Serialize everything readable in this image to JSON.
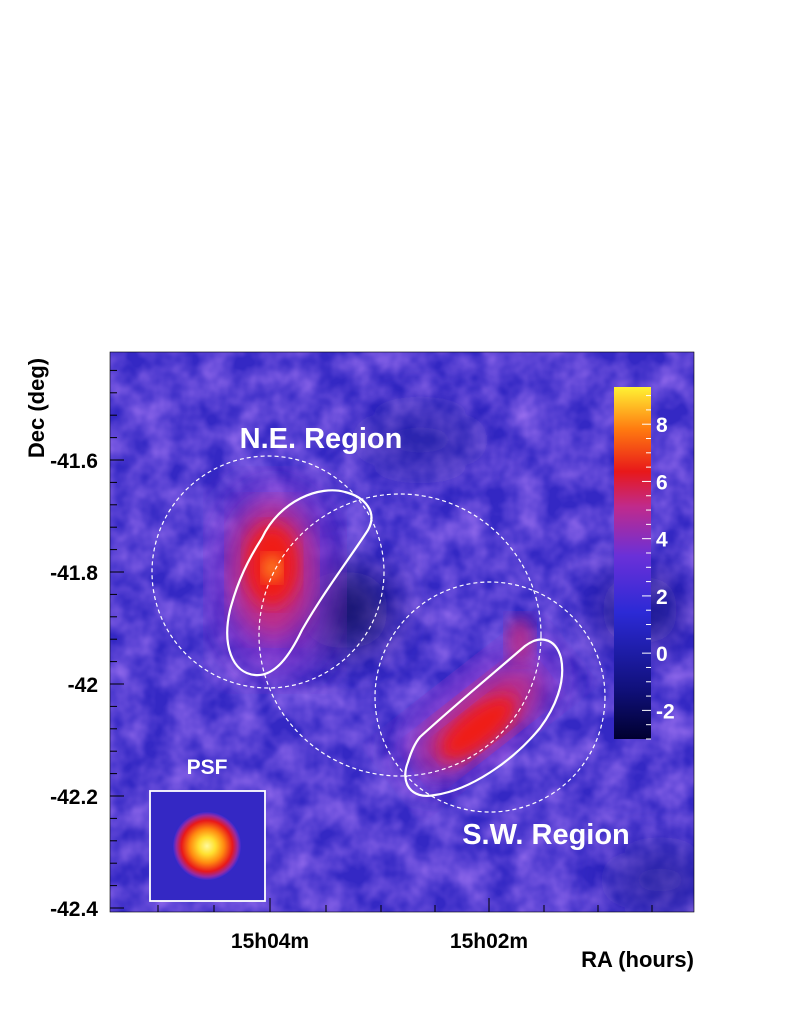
{
  "chart_data": {
    "type": "heatmap",
    "title": "",
    "xlabel": "RA (hours)",
    "ylabel": "Dec (deg)",
    "x_tick_labels": [
      "15h04m",
      "15h02m"
    ],
    "y_ticks": [
      -41.6,
      -41.8,
      -42,
      -42.2,
      -42.4
    ],
    "y_tick_labels": [
      "-41.6",
      "-41.8",
      "-42",
      "-42.2",
      "-42.4"
    ],
    "ylim": [
      -42.4,
      -41.4
    ],
    "colorbar": {
      "ticks": [
        8,
        6,
        4,
        2,
        0,
        -2
      ],
      "tick_labels": [
        "8",
        "6",
        "4",
        "2",
        "0",
        "-2"
      ],
      "range": [
        -3,
        9.3
      ],
      "colors": [
        "#000030",
        "#10107a",
        "#2c2ad6",
        "#6a30d8",
        "#c02a8c",
        "#e8181a",
        "#ff7a10",
        "#fff234"
      ]
    },
    "annotations": {
      "ne_region": "N.E. Region",
      "sw_region": "S.W. Region",
      "psf": "PSF"
    },
    "background_level": 3,
    "hotspots": [
      {
        "region": "N.E.",
        "peak_value": 8.5
      },
      {
        "region": "S.W.",
        "peak_value": 7
      }
    ]
  }
}
